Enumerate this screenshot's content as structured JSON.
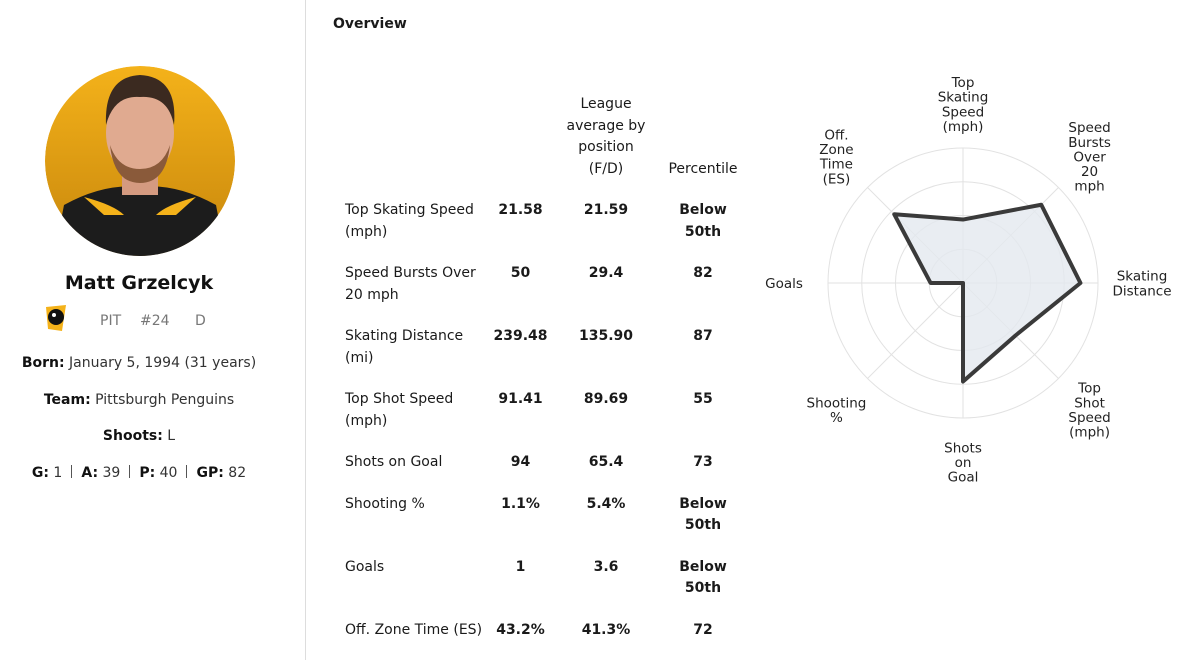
{
  "player": {
    "name": "Matt Grzelcyk",
    "team_abbr": "PIT",
    "number": "#24",
    "position": "D",
    "born_label": "Born:",
    "born": "January 5, 1994 (31 years)",
    "team_label": "Team:",
    "team": "Pittsburgh Penguins",
    "shoots_label": "Shoots:",
    "shoots": "L",
    "stats": [
      {
        "label": "G:",
        "value": "1"
      },
      {
        "label": "A:",
        "value": "39"
      },
      {
        "label": "P:",
        "value": "40"
      },
      {
        "label": "GP:",
        "value": "82"
      }
    ]
  },
  "overview": {
    "title": "Overview",
    "table": {
      "headers": {
        "league": "League average by position (F/D)",
        "percentile": "Percentile"
      },
      "rows": [
        [
          "Top Skating Speed (mph)",
          "21.58",
          "21.59",
          "Below 50th"
        ],
        [
          "Speed Bursts Over 20 mph",
          "50",
          "29.4",
          "82"
        ],
        [
          "Skating Distance (mi)",
          "239.48",
          "135.90",
          "87"
        ],
        [
          "Top Shot Speed (mph)",
          "91.41",
          "89.69",
          "55"
        ],
        [
          "Shots on Goal",
          "94",
          "65.4",
          "73"
        ],
        [
          "Shooting %",
          "1.1%",
          "5.4%",
          "Below 50th"
        ],
        [
          "Goals",
          "1",
          "3.6",
          "Below 50th"
        ],
        [
          "Off. Zone Time (ES)",
          "43.2%",
          "41.3%",
          "72"
        ]
      ]
    }
  },
  "chart_data": {
    "type": "radar",
    "axes": [
      "Top Skating Speed (mph)",
      "Speed Bursts Over 20 mph",
      "Skating Distance",
      "Top Shot Speed (mph)",
      "Shots on Goal",
      "Shooting %",
      "Goals",
      "Off. Zone Time (ES)"
    ],
    "values": [
      47,
      82,
      87,
      55,
      73,
      0,
      24,
      72
    ],
    "color": "#3a3a3a",
    "fill": "#e4e9ef",
    "rlim": [
      0,
      100
    ],
    "rticks": [
      25,
      50,
      75,
      100
    ]
  }
}
